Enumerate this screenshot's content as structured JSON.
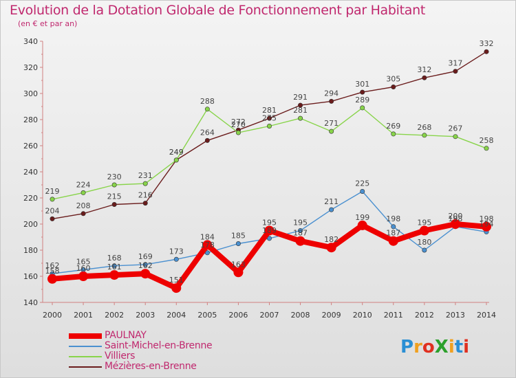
{
  "header": {
    "title": "Evolution de la Dotation Globale de Fonctionnement par Habitant",
    "subtitle": "(en € et par an)"
  },
  "logo": {
    "text": "ProXiti",
    "colors": [
      "#2a8fd4",
      "#f0a020",
      "#e03020",
      "#2ca02c",
      "#f0a020",
      "#2a8fd4",
      "#e03020"
    ]
  },
  "chart_data": {
    "type": "line",
    "x": [
      "2000",
      "2001",
      "2002",
      "2003",
      "2004",
      "2005",
      "2006",
      "2007",
      "2008",
      "2009",
      "2010",
      "2011",
      "2012",
      "2013",
      "2014"
    ],
    "ylim": [
      140,
      340
    ],
    "yticks": [
      140,
      160,
      180,
      200,
      220,
      240,
      260,
      280,
      300,
      320,
      340
    ],
    "grid": false,
    "legend_position": "bottom-left",
    "series": [
      {
        "name": "PAULNAY",
        "color": "#ee0000",
        "values": [
          158,
          160,
          161,
          162,
          151,
          184,
          163,
          195,
          187,
          182,
          199,
          187,
          195,
          200,
          198
        ],
        "labels": [
          "158",
          "160",
          "161",
          "162",
          "151",
          "184",
          "163",
          "195",
          "187",
          "182",
          "199",
          "187",
          "195",
          "200",
          "198"
        ]
      },
      {
        "name": "Saint-Michel-en-Brenne",
        "color": "#4a90d0",
        "values": [
          162,
          165,
          168,
          169,
          173,
          178,
          185,
          189,
          195,
          211,
          225,
          198,
          180,
          198,
          194
        ],
        "labels": [
          "162",
          "165",
          "168",
          "169",
          "173",
          "178",
          "185",
          "189",
          "195",
          "211",
          "225",
          "198",
          "180",
          "198",
          "194"
        ]
      },
      {
        "name": "Villiers",
        "color": "#88d44a",
        "values": [
          219,
          224,
          230,
          231,
          249,
          288,
          270,
          275,
          281,
          271,
          289,
          269,
          268,
          267,
          258
        ],
        "labels": [
          "219",
          "224",
          "230",
          "231",
          "249",
          "288",
          "270",
          "275",
          "281",
          "271",
          "289",
          "269",
          "268",
          "267",
          "258"
        ]
      },
      {
        "name": "Mézières-en-Brenne",
        "color": "#6a1c1c",
        "values": [
          204,
          208,
          215,
          216,
          249,
          264,
          272,
          281,
          291,
          294,
          301,
          305,
          312,
          317,
          332
        ],
        "labels": [
          "204",
          "208",
          "215",
          "216",
          "249",
          "264",
          "272",
          "281",
          "291",
          "294",
          "301",
          "305",
          "312",
          "317",
          "332"
        ]
      }
    ]
  }
}
